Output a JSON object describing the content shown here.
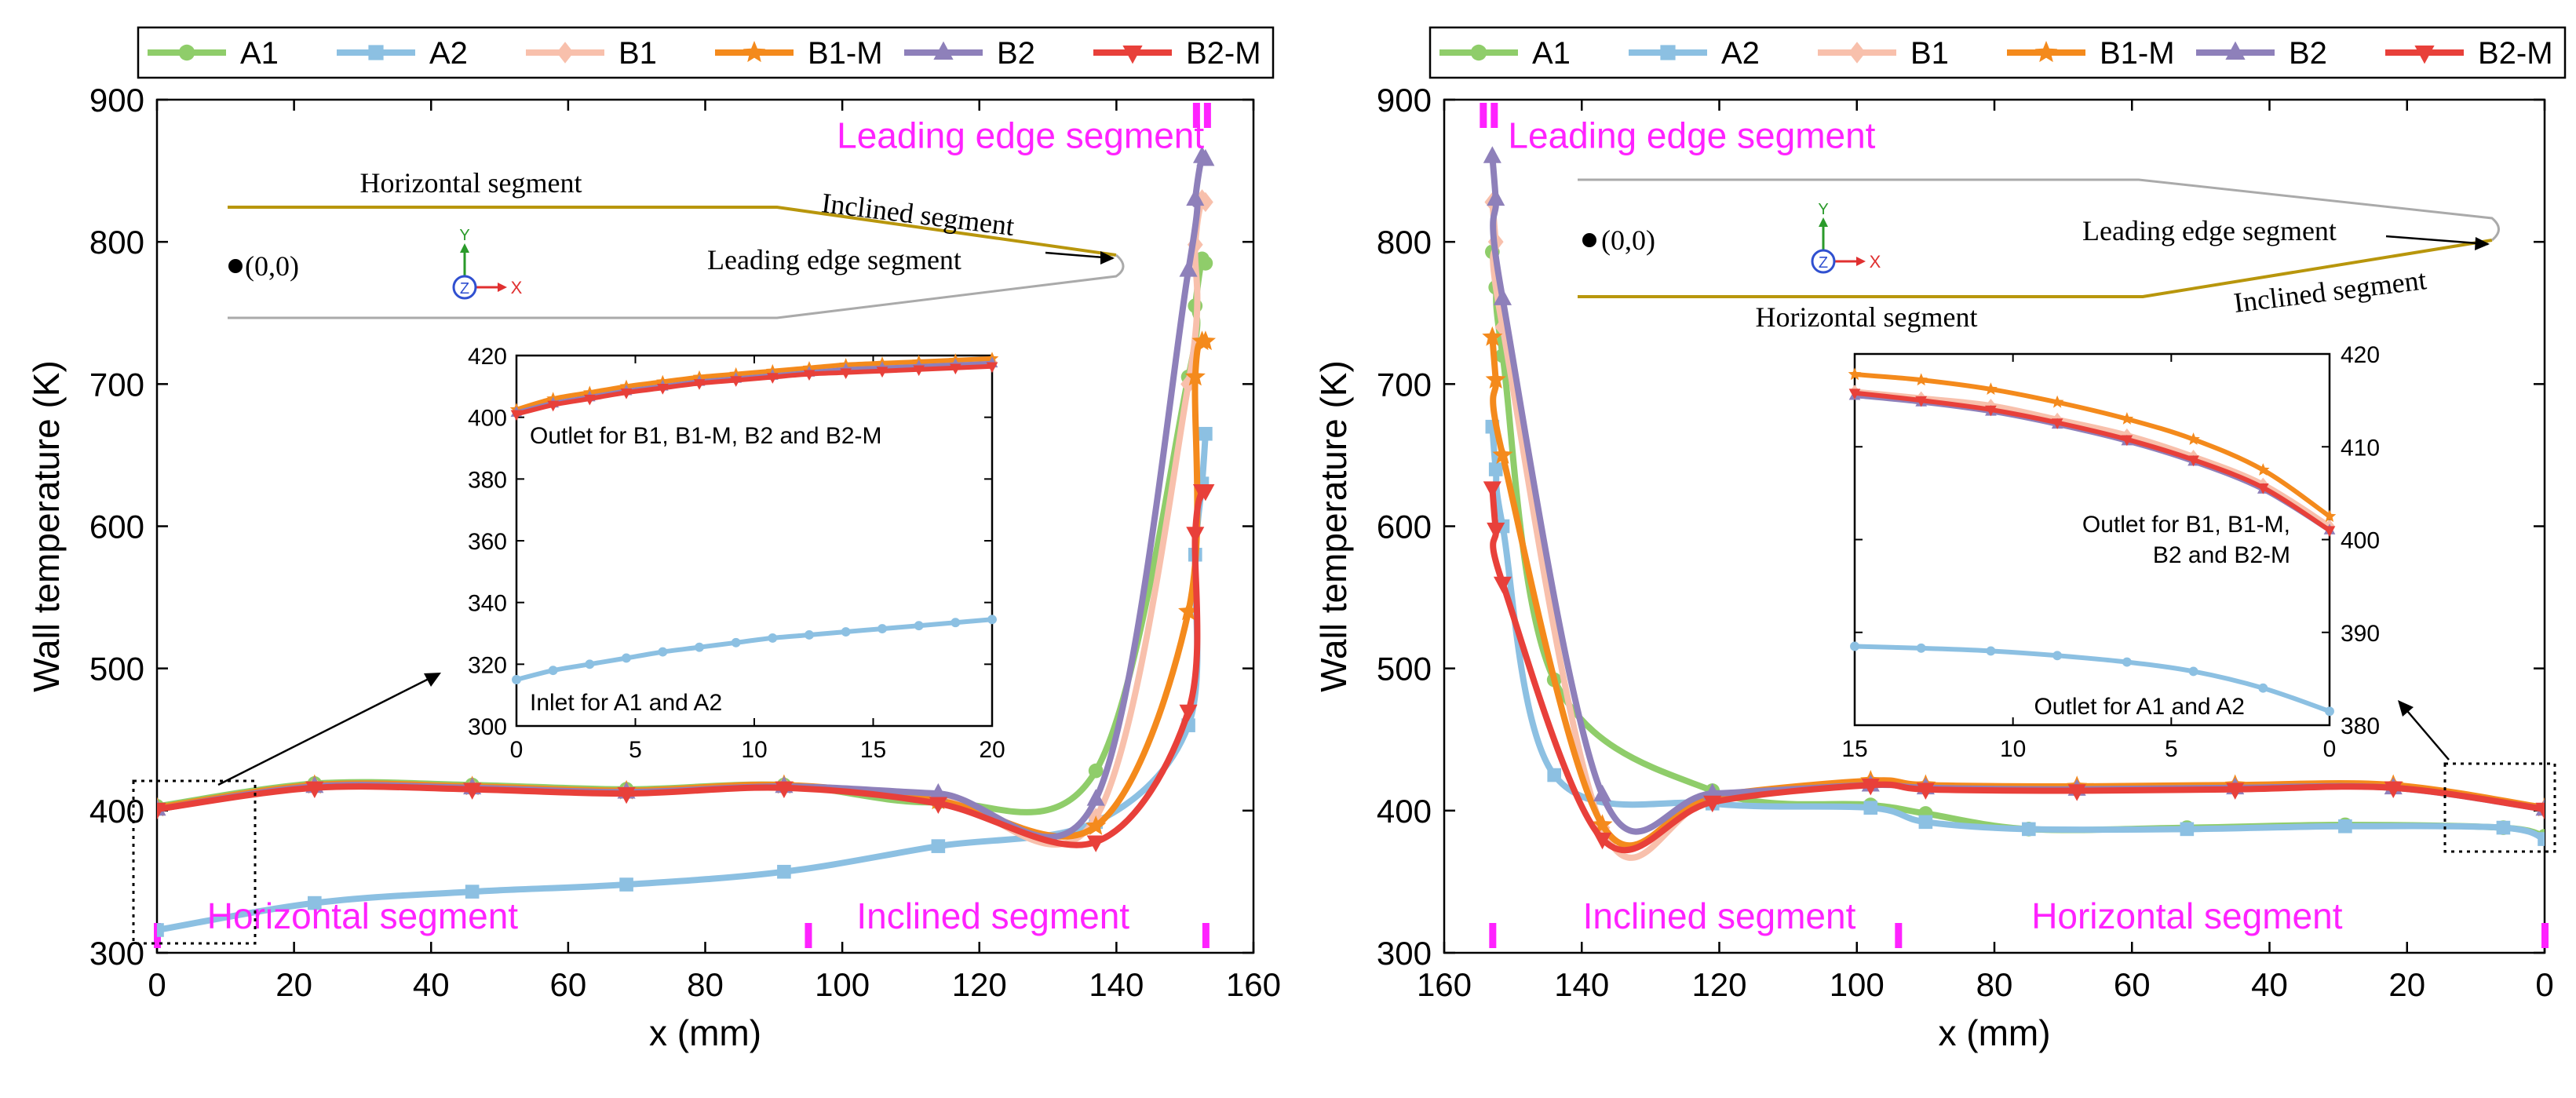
{
  "colors": {
    "A1": "#8fcd6a",
    "A2": "#8cc0e2",
    "B1": "#f8c0ac",
    "B1-M": "#f48a1c",
    "B2": "#8e80ba",
    "B2-M": "#e8403a",
    "segment_label": "#ff22ff",
    "airfoil_outline": "#b8960c",
    "airfoil_gray": "#aaaaaa",
    "axis": "#000000"
  },
  "chart_data": [
    {
      "type": "line",
      "panel": "left",
      "xlabel": "x (mm)",
      "ylabel": "Wall temperature (K)",
      "xlim": [
        0,
        160
      ],
      "ylim": [
        300,
        900
      ],
      "xticks": [
        "0",
        "20",
        "40",
        "60",
        "80",
        "100",
        "120",
        "140",
        "160"
      ],
      "yticks": [
        "300",
        "400",
        "500",
        "600",
        "700",
        "800",
        "900"
      ],
      "legend": {
        "placement": "top",
        "entries": [
          "A1",
          "A2",
          "B1",
          "B1-M",
          "B2",
          "B2-M"
        ]
      },
      "marker_shapes": {
        "A1": "circle",
        "A2": "square",
        "B1": "diamond",
        "B1-M": "star",
        "B2": "triangle-up",
        "B2-M": "triangle-down"
      },
      "series": [
        {
          "name": "A1",
          "x": [
            0,
            23,
            46,
            68.5,
            91.5,
            114,
            137,
            150.5,
            151.5,
            152.5,
            153
          ],
          "y": [
            403,
            419,
            418,
            415,
            418,
            406,
            428,
            705,
            755,
            788,
            785
          ]
        },
        {
          "name": "A2",
          "x": [
            0,
            23,
            46,
            68.5,
            91.5,
            114,
            137,
            150.5,
            151.5,
            152.5,
            153
          ],
          "y": [
            316,
            335,
            343,
            348,
            357,
            375,
            392,
            460,
            580,
            630,
            665
          ]
        },
        {
          "name": "B1",
          "x": [
            0,
            23,
            46,
            68.5,
            91.5,
            114,
            137,
            150.5,
            151.5,
            152.5,
            153
          ],
          "y": [
            401,
            417,
            416,
            413,
            417,
            410,
            395,
            700,
            798,
            830,
            828
          ]
        },
        {
          "name": "B1-M",
          "x": [
            0,
            23,
            46,
            68.5,
            91.5,
            114,
            137,
            150.5,
            151.5,
            152.5,
            153
          ],
          "y": [
            402,
            418,
            417,
            414,
            418,
            407,
            389,
            540,
            705,
            730,
            730
          ]
        },
        {
          "name": "B2",
          "x": [
            0,
            23,
            46,
            68.5,
            91.5,
            114,
            137,
            150.5,
            151.5,
            152.5,
            153
          ],
          "y": [
            401,
            417,
            416,
            413,
            417,
            412,
            408,
            780,
            830,
            860,
            858
          ]
        },
        {
          "name": "B2-M",
          "x": [
            0,
            23,
            46,
            68.5,
            91.5,
            114,
            137,
            150.5,
            151.5,
            152.5,
            153
          ],
          "y": [
            401,
            416,
            415,
            412,
            416,
            405,
            378,
            470,
            595,
            625,
            625
          ]
        }
      ],
      "segment_labels": [
        {
          "text": "Horizontal segment",
          "x": 30,
          "y": 317
        },
        {
          "text": "Inclined segment",
          "x": 122,
          "y": 317
        },
        {
          "text": "Leading edge segment",
          "x": 126,
          "y": 866
        }
      ],
      "segment_markers_x": [
        0,
        95,
        153
      ],
      "leading_edge_marker_x": 153,
      "schematic": {
        "labels": [
          "Horizontal segment",
          "Inclined segment",
          "Leading edge segment",
          "(0,0)"
        ],
        "axis_labels": [
          "Y",
          "Z",
          "X"
        ]
      },
      "inset": {
        "xlim": [
          0,
          20
        ],
        "ylim": [
          300,
          420
        ],
        "xticks": [
          "0",
          "5",
          "10",
          "15",
          "20"
        ],
        "yticks": [
          "300",
          "320",
          "340",
          "360",
          "380",
          "400",
          "420"
        ],
        "annotations": [
          "Outlet for B1, B1-M, B2 and B2-M",
          "Inlet for A1 and A2"
        ],
        "series": [
          {
            "name": "A2",
            "x": [
              0,
              1.54,
              3.08,
              4.62,
              6.15,
              7.69,
              9.23,
              10.77,
              12.31,
              13.85,
              15.38,
              16.92,
              18.46,
              20
            ],
            "y": [
              315,
              318,
              320,
              322,
              324,
              325.5,
              327,
              328.5,
              329.5,
              330.5,
              331.5,
              332.5,
              333.5,
              334.5
            ]
          },
          {
            "name": "B1",
            "x": [
              0,
              1.54,
              3.08,
              4.62,
              6.15,
              7.69,
              9.23,
              10.77,
              12.31,
              13.85,
              15.38,
              16.92,
              18.46,
              20
            ],
            "y": [
              402,
              405,
              407,
              409,
              410.5,
              412,
              413,
              414,
              415,
              416,
              416.5,
              417,
              417.5,
              418
            ]
          },
          {
            "name": "B1-M",
            "x": [
              0,
              1.54,
              3.08,
              4.62,
              6.15,
              7.69,
              9.23,
              10.77,
              12.31,
              13.85,
              15.38,
              16.92,
              18.46,
              20
            ],
            "y": [
              402.5,
              406,
              408,
              410,
              411.5,
              413,
              414,
              415,
              416,
              417,
              417.5,
              418,
              418.5,
              419
            ]
          },
          {
            "name": "B2",
            "x": [
              0,
              1.54,
              3.08,
              4.62,
              6.15,
              7.69,
              9.23,
              10.77,
              12.31,
              13.85,
              15.38,
              16.92,
              18.46,
              20
            ],
            "y": [
              401.5,
              404.5,
              406.5,
              408.5,
              410,
              411.5,
              412.5,
              413.5,
              414.5,
              415.5,
              416,
              416.5,
              417,
              417.5
            ]
          },
          {
            "name": "B2-M",
            "x": [
              0,
              1.54,
              3.08,
              4.62,
              6.15,
              7.69,
              9.23,
              10.77,
              12.31,
              13.85,
              15.38,
              16.92,
              18.46,
              20
            ],
            "y": [
              401,
              404,
              406,
              408,
              409.5,
              411,
              412,
              413,
              414,
              414.5,
              415,
              415.5,
              416,
              416.5
            ]
          }
        ]
      }
    },
    {
      "type": "line",
      "panel": "right",
      "xlabel": "x (mm)",
      "ylabel": "Wall temperature (K)",
      "xlim": [
        0,
        160
      ],
      "x_reversed": true,
      "ylim": [
        300,
        900
      ],
      "xticks": [
        "160",
        "140",
        "120",
        "100",
        "80",
        "60",
        "40",
        "20",
        "0"
      ],
      "yticks": [
        "300",
        "400",
        "500",
        "600",
        "700",
        "800",
        "900"
      ],
      "legend": {
        "placement": "top",
        "entries": [
          "A1",
          "A2",
          "B1",
          "B1-M",
          "B2",
          "B2-M"
        ]
      },
      "marker_shapes": {
        "A1": "circle",
        "A2": "square",
        "B1": "diamond",
        "B1-M": "star",
        "B2": "triangle-up",
        "B2-M": "triangle-down"
      },
      "series": [
        {
          "name": "A1",
          "x": [
            153,
            152.5,
            151.5,
            144,
            121,
            98,
            90,
            75,
            52,
            29,
            6,
            0
          ],
          "y": [
            793,
            768,
            720,
            492,
            414,
            404,
            398,
            387,
            388,
            390,
            388,
            382
          ]
        },
        {
          "name": "A2",
          "x": [
            153,
            152.5,
            151.5,
            144,
            121,
            98,
            90,
            75,
            52,
            29,
            6,
            0
          ],
          "y": [
            670,
            640,
            600,
            425,
            405,
            402,
            392,
            387,
            387,
            389,
            388,
            380
          ]
        },
        {
          "name": "B1",
          "x": [
            153,
            152.5,
            151.5,
            137,
            121,
            98,
            90,
            68,
            45,
            22,
            0
          ],
          "y": [
            828,
            800,
            740,
            388,
            408,
            420,
            417,
            416,
            417,
            417,
            401
          ]
        },
        {
          "name": "B1-M",
          "x": [
            153,
            152.5,
            151.5,
            137,
            121,
            98,
            90,
            68,
            45,
            22,
            0
          ],
          "y": [
            733,
            703,
            650,
            390,
            410,
            421,
            418,
            417,
            418,
            418,
            402
          ]
        },
        {
          "name": "B2",
          "x": [
            153,
            152.5,
            151.5,
            137,
            121,
            98,
            90,
            68,
            45,
            22,
            0
          ],
          "y": [
            860,
            830,
            760,
            411,
            412,
            418,
            416,
            415,
            416,
            416,
            401
          ]
        },
        {
          "name": "B2-M",
          "x": [
            153,
            152.5,
            151.5,
            137,
            121,
            98,
            90,
            68,
            45,
            22,
            0
          ],
          "y": [
            627,
            598,
            560,
            380,
            406,
            418,
            415,
            414,
            415,
            416,
            401
          ]
        }
      ],
      "segment_labels": [
        {
          "text": "Leading edge segment",
          "x": 124,
          "y": 866
        },
        {
          "text": "Inclined segment",
          "x": 120,
          "y": 317
        },
        {
          "text": "Horizontal segment",
          "x": 52,
          "y": 317
        }
      ],
      "segment_markers_x": [
        153,
        94,
        0
      ],
      "leading_edge_marker_x": 153,
      "schematic": {
        "labels": [
          "Leading edge segment",
          "Inclined segment",
          "Horizontal segment",
          "(0,0)"
        ],
        "axis_labels": [
          "Y",
          "Z",
          "X"
        ]
      },
      "inset": {
        "xlim": [
          0,
          15
        ],
        "x_reversed": true,
        "ylim": [
          380,
          420
        ],
        "y_axis_side": "right",
        "xticks": [
          "15",
          "10",
          "5",
          "0"
        ],
        "yticks": [
          "380",
          "390",
          "400",
          "410",
          "420"
        ],
        "annotations": [
          "Outlet for B1, B1-M,",
          "B2 and B2-M",
          "Outlet for A1 and A2"
        ],
        "series": [
          {
            "name": "A2",
            "x": [
              15,
              12.9,
              10.7,
              8.6,
              6.4,
              4.3,
              2.1,
              0
            ],
            "y": [
              388.5,
              388.3,
              388,
              387.5,
              386.8,
              385.8,
              384,
              381.5
            ]
          },
          {
            "name": "B1",
            "x": [
              15,
              12.9,
              10.7,
              8.6,
              6.4,
              4.3,
              2.1,
              0
            ],
            "y": [
              416,
              415.3,
              414.5,
              413,
              411.3,
              409,
              406,
              401.5
            ]
          },
          {
            "name": "B1-M",
            "x": [
              15,
              12.9,
              10.7,
              8.6,
              6.4,
              4.3,
              2.1,
              0
            ],
            "y": [
              417.8,
              417.2,
              416.2,
              414.8,
              413,
              410.8,
              407.5,
              402.5
            ]
          },
          {
            "name": "B2",
            "x": [
              15,
              12.9,
              10.7,
              8.6,
              6.4,
              4.3,
              2.1,
              0
            ],
            "y": [
              415.5,
              414.8,
              413.8,
              412.4,
              410.6,
              408.4,
              405.4,
              401
            ]
          },
          {
            "name": "B2-M",
            "x": [
              15,
              12.9,
              10.7,
              8.6,
              6.4,
              4.3,
              2.1,
              0
            ],
            "y": [
              415.8,
              415,
              414,
              412.6,
              410.8,
              408.6,
              405.6,
              401
            ]
          }
        ]
      }
    }
  ]
}
